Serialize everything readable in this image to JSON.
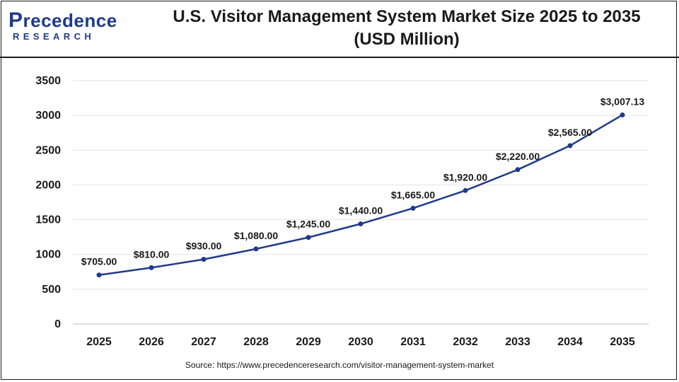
{
  "header": {
    "logo_main": "recedence",
    "logo_initial": "P",
    "logo_sub": "RESEARCH",
    "title_line1": "U.S. Visitor Management System Market Size 2025 to 2035",
    "title_line2": "(USD Million)"
  },
  "chart_data": {
    "type": "line",
    "title": "U.S. Visitor Management System Market Size 2025 to 2035 (USD Million)",
    "xlabel": "",
    "ylabel": "",
    "categories": [
      "2025",
      "2026",
      "2027",
      "2028",
      "2029",
      "2030",
      "2031",
      "2032",
      "2033",
      "2034",
      "2035"
    ],
    "series": [
      {
        "values": [
          705.0,
          810.0,
          930.0,
          1080.0,
          1245.0,
          1440.0,
          1665.0,
          1920.0,
          2220.0,
          2565.0,
          3007.13
        ],
        "labels": [
          "$705.00",
          "$810.00",
          "$930.00",
          "$1,080.00",
          "$1,245.00",
          "$1,440.00",
          "$1,665.00",
          "$1,920.00",
          "$2,220.00",
          "$2,565.00",
          "$3,007.13"
        ]
      }
    ],
    "ylim": [
      0,
      3500
    ],
    "yticks": [
      "0",
      "500",
      "1000",
      "1500",
      "2000",
      "2500",
      "3000",
      "3500"
    ],
    "grid": true,
    "line_color": "#1f3a8a"
  },
  "footer": {
    "source": "Source: https://www.precedenceresearch.com/visitor-management-system-market"
  }
}
